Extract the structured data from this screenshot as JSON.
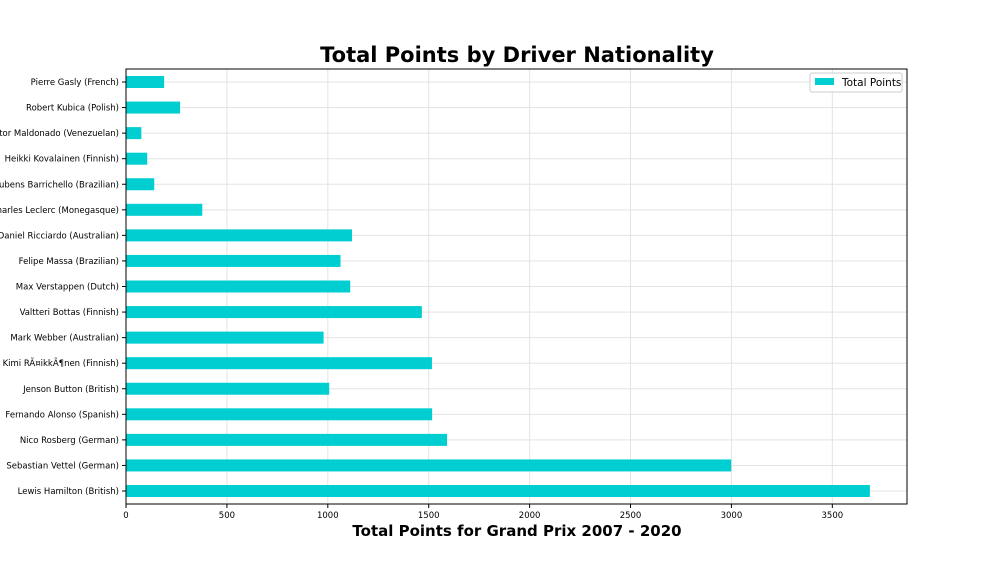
{
  "chart_data": {
    "type": "bar",
    "orientation": "horizontal",
    "title": "Total Points by Driver Nationality",
    "xlabel": "Total Points for Grand Prix 2007 - 2020",
    "ylabel": "",
    "categories": [
      "Lewis Hamilton (British)",
      "Sebastian Vettel (German)",
      "Nico Rosberg (German)",
      "Fernando Alonso (Spanish)",
      "Jenson Button (British)",
      "Kimi RÃ¤ikkÃ¶nen (Finnish)",
      "Mark Webber (Australian)",
      "Valtteri Bottas (Finnish)",
      "Max Verstappen (Dutch)",
      "Felipe Massa (Brazilian)",
      "Daniel Ricciardo (Australian)",
      "Charles Leclerc (Monegasque)",
      "Rubens Barrichello (Brazilian)",
      "Heikki Kovalainen (Finnish)",
      "Pastor Maldonado (Venezuelan)",
      "Robert Kubica (Polish)",
      "Pierre Gasly (French)"
    ],
    "series": [
      {
        "name": "Total Points",
        "color": "#00ced1",
        "values": [
          3686,
          2999,
          1591,
          1517,
          1007,
          1516,
          979,
          1466,
          1111,
          1063,
          1120,
          378,
          140,
          105,
          76,
          268,
          189
        ]
      }
    ],
    "xlim": [
      0,
      3870
    ],
    "xticks": [
      0,
      500,
      1000,
      1500,
      2000,
      2500,
      3000,
      3500
    ],
    "grid": true,
    "legend": "top-right"
  }
}
